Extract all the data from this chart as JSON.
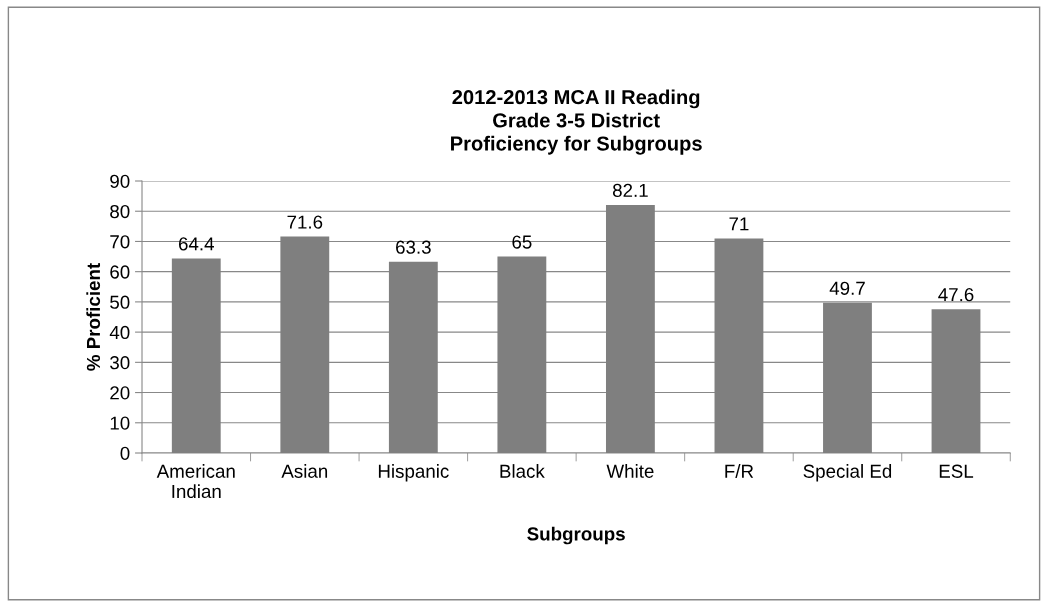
{
  "chart_data": {
    "type": "bar",
    "title": "2012-2013 MCA II Reading\nGrade 3-5 District\nProficiency for Subgroups",
    "xlabel": "Subgroups",
    "ylabel": "% Proficient",
    "categories": [
      "American\nIndian",
      "Asian",
      "Hispanic",
      "Black",
      "White",
      "F/R",
      "Special Ed",
      "ESL"
    ],
    "values": [
      64.4,
      71.6,
      63.3,
      65,
      82.1,
      71,
      49.7,
      47.6
    ],
    "color": "#7f7f7f",
    "ylim": [
      0,
      90
    ],
    "yticks": [
      0,
      10,
      20,
      30,
      40,
      50,
      60,
      70,
      80,
      90
    ],
    "grid": "y",
    "data_labels": true
  }
}
